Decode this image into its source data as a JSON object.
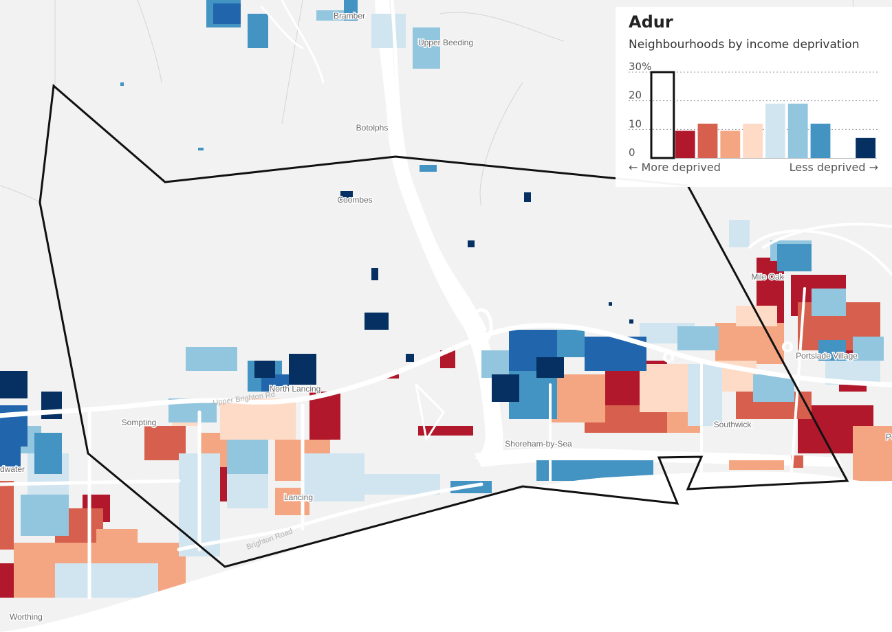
{
  "map": {
    "places": [
      {
        "name": "Bramber"
      },
      {
        "name": "Upper Beeding"
      },
      {
        "name": "Botolphs"
      },
      {
        "name": "Coombes"
      },
      {
        "name": "North Lancing"
      },
      {
        "name": "Sompting"
      },
      {
        "name": "Lancing"
      },
      {
        "name": "Shoreham-by-Sea"
      },
      {
        "name": "Southwick"
      },
      {
        "name": "Mile Oak"
      },
      {
        "name": "Portslade Village"
      },
      {
        "name": "Portsl"
      },
      {
        "name": "dwater"
      },
      {
        "name": "Worthing"
      }
    ],
    "roads": [
      {
        "name": "Upper Brighton Rd"
      },
      {
        "name": "Brighton Road"
      }
    ]
  },
  "panel": {
    "title": "Adur",
    "subtitle": "Neighbourhoods by income deprivation"
  },
  "chart_data": {
    "type": "bar",
    "categories": [
      "1",
      "2",
      "3",
      "4",
      "5",
      "6",
      "7",
      "8",
      "9",
      "10"
    ],
    "values": [
      0,
      9.5,
      12,
      9.5,
      12,
      19,
      19,
      12,
      0,
      7
    ],
    "colors": [
      "#67001f",
      "#b2182b",
      "#d6604d",
      "#f4a582",
      "#fddbc7",
      "#d1e5f0",
      "#92c5de",
      "#4393c3",
      "#2166ac",
      "#053061"
    ],
    "highlighted_category": "1",
    "ylim": [
      0,
      30
    ],
    "yticks": [
      0,
      10,
      20,
      30
    ],
    "ytick_labels": [
      "0",
      "10",
      "20",
      "30%"
    ],
    "xlabel_left": "← More deprived",
    "xlabel_right": "Less deprived →",
    "grid": "dotted horizontal"
  }
}
